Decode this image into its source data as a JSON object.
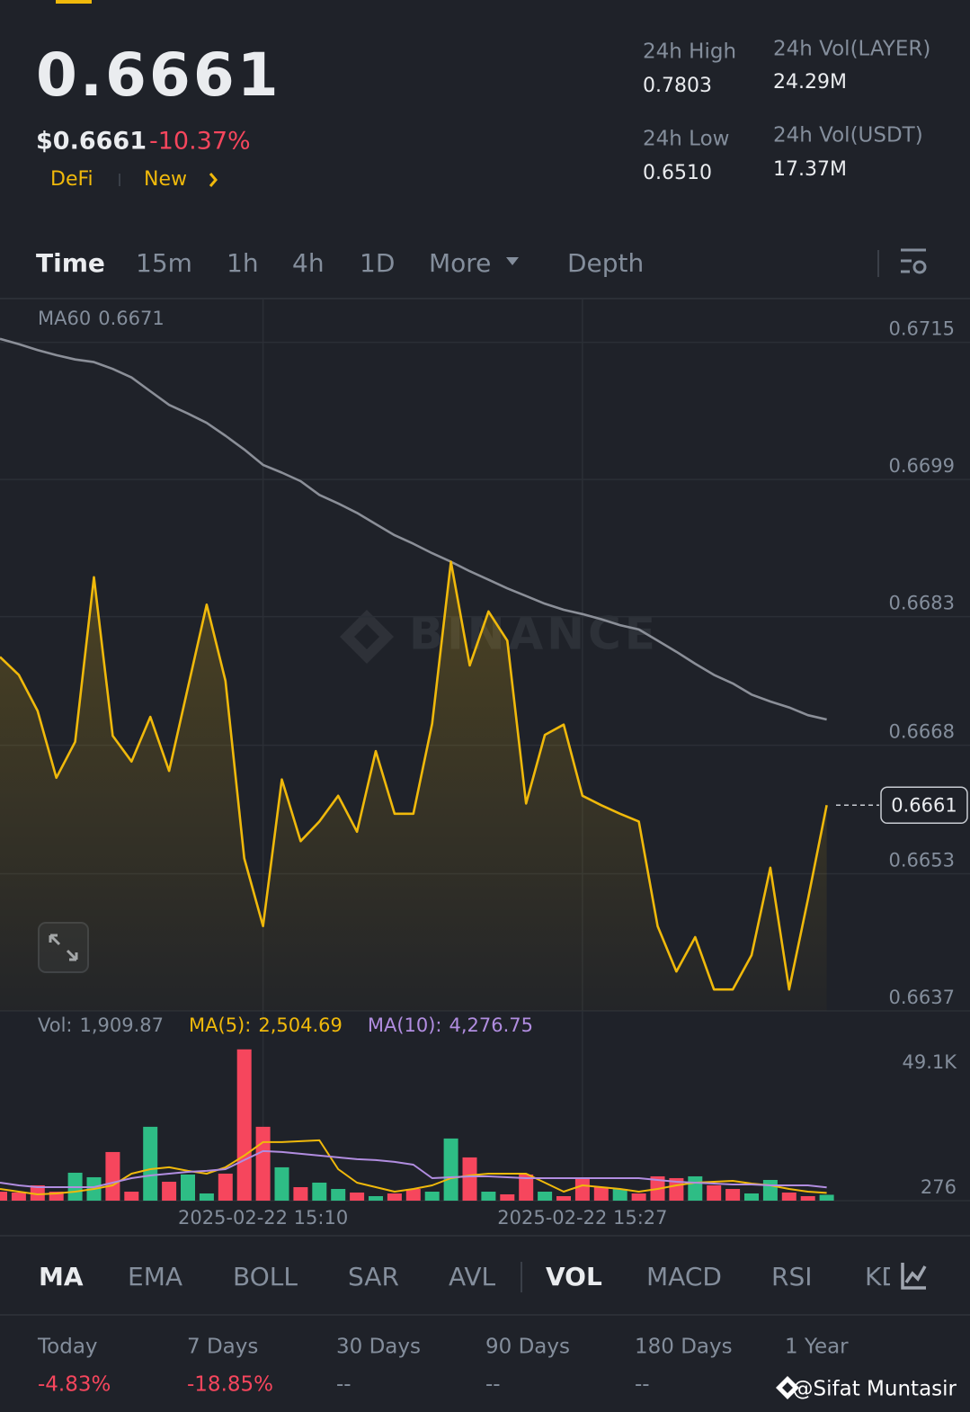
{
  "header": {
    "price": "0.6661",
    "usd_price": "$0.6661",
    "change": "-10.37%",
    "tags": [
      "DeFi",
      "New"
    ],
    "stats": [
      {
        "label": "24h High",
        "value": "0.7803"
      },
      {
        "label": "24h Vol(LAYER)",
        "value": "24.29M"
      },
      {
        "label": "24h Low",
        "value": "0.6510"
      },
      {
        "label": "24h Vol(USDT)",
        "value": "17.37M"
      }
    ]
  },
  "tabs": {
    "items": [
      "Time",
      "15m",
      "1h",
      "4h",
      "1D",
      "More",
      "Depth"
    ],
    "active": 0
  },
  "watermark": "BINANCE",
  "chart_data": [
    {
      "type": "line",
      "categories": [
        null,
        null,
        null,
        null,
        null,
        null,
        null,
        null,
        null,
        null,
        null,
        null,
        null,
        null,
        "2025-02-22 15:10",
        null,
        null,
        null,
        null,
        null,
        null,
        null,
        null,
        null,
        null,
        null,
        null,
        null,
        null,
        null,
        null,
        "2025-02-22 15:27",
        null,
        null,
        null,
        null,
        null,
        null,
        null,
        null,
        null,
        null,
        null,
        null,
        null
      ],
      "series": [
        {
          "name": "MA60",
          "last_label": "0.6671",
          "color": "#8b8f98",
          "values": [
            0.67154,
            0.67148,
            0.67141,
            0.67135,
            0.6713,
            0.67127,
            0.67119,
            0.67109,
            0.67093,
            0.67077,
            0.67067,
            0.67056,
            0.67041,
            0.67025,
            0.67007,
            0.66998,
            0.66988,
            0.66972,
            0.66962,
            0.66951,
            0.66938,
            0.66925,
            0.66915,
            0.66904,
            0.66894,
            0.66883,
            0.66873,
            0.66863,
            0.66854,
            0.66845,
            0.66838,
            0.66833,
            0.66827,
            0.6682,
            0.66815,
            0.66802,
            0.66789,
            0.66775,
            0.66762,
            0.66752,
            0.66739,
            0.66731,
            0.66724,
            0.66715,
            0.6671
          ]
        },
        {
          "last_label": "0.6661",
          "color": "#f0b90b",
          "fill": true,
          "values": [
            0.66783,
            0.66762,
            0.6672,
            0.66642,
            0.66684,
            0.66876,
            0.66691,
            0.66661,
            0.66713,
            0.6665,
            0.66747,
            0.66844,
            0.66755,
            0.66548,
            0.66469,
            0.6664,
            0.66568,
            0.66591,
            0.66621,
            0.66579,
            0.66673,
            0.666,
            0.666,
            0.66705,
            0.66894,
            0.66773,
            0.66836,
            0.66802,
            0.66612,
            0.66692,
            0.66704,
            0.66621,
            0.6661,
            0.666,
            0.66591,
            0.66469,
            0.66416,
            0.66456,
            0.66395,
            0.66395,
            0.66435,
            0.66537,
            0.66395,
            0.665,
            0.6661
          ]
        }
      ],
      "ylim": [
        0.6637,
        0.672
      ],
      "yticks": [
        0.6715,
        0.6699,
        0.6683,
        0.6668,
        0.6653,
        0.6637
      ],
      "grid": true
    },
    {
      "type": "bar",
      "value_name": "Vol:",
      "last_label": "1,909.87",
      "values": [
        2900,
        2630,
        4970,
        2920,
        9060,
        7600,
        15780,
        2920,
        23970,
        6140,
        8480,
        2340,
        8770,
        49100,
        23970,
        10820,
        4380,
        5850,
        3800,
        2630,
        1460,
        2340,
        3800,
        2920,
        20170,
        14030,
        2920,
        2050,
        8480,
        2920,
        1460,
        7310,
        4380,
        3800,
        2340,
        7890,
        7310,
        7890,
        4970,
        3800,
        2340,
        6720,
        2630,
        1460,
        1909.87
      ],
      "colors": [
        "#f6465d",
        "#f6465d",
        "#f6465d",
        "#f6465d",
        "#2ebd85",
        "#2ebd85",
        "#f6465d",
        "#f6465d",
        "#2ebd85",
        "#f6465d",
        "#2ebd85",
        "#2ebd85",
        "#f6465d",
        "#f6465d",
        "#f6465d",
        "#2ebd85",
        "#f6465d",
        "#2ebd85",
        "#2ebd85",
        "#f6465d",
        "#2ebd85",
        "#f6465d",
        "#f6465d",
        "#2ebd85",
        "#2ebd85",
        "#f6465d",
        "#2ebd85",
        "#f6465d",
        "#f6465d",
        "#2ebd85",
        "#f6465d",
        "#f6465d",
        "#f6465d",
        "#2ebd85",
        "#f6465d",
        "#f6465d",
        "#f6465d",
        "#2ebd85",
        "#f6465d",
        "#f6465d",
        "#2ebd85",
        "#2ebd85",
        "#f6465d",
        "#f6465d",
        "#2ebd85"
      ],
      "series": [
        {
          "name": "MA(5):",
          "last_label": "2,504.69",
          "color": "#f0b90b",
          "values": [
            3800,
            2920,
            2050,
            2340,
            2920,
            3800,
            4970,
            8770,
            10230,
            10820,
            9650,
            8770,
            10820,
            14620,
            19000,
            19000,
            19290,
            19580,
            10230,
            5850,
            4380,
            2920,
            3800,
            4970,
            7310,
            8180,
            8770,
            8770,
            8770,
            5850,
            2920,
            4970,
            4380,
            3800,
            2920,
            3800,
            4970,
            5850,
            6140,
            6430,
            5550,
            4970,
            3800,
            2920,
            2504.69
          ]
        },
        {
          "name": "MA(10):",
          "last_label": "4,276.75",
          "color": "#b18de0",
          "values": [
            5850,
            4970,
            4380,
            4380,
            4380,
            4380,
            5850,
            7310,
            8180,
            8770,
            9350,
            9650,
            10230,
            13150,
            16080,
            15780,
            15200,
            14620,
            14030,
            13450,
            13150,
            12570,
            11690,
            7310,
            7600,
            7890,
            7890,
            7600,
            7310,
            7310,
            7310,
            7310,
            7310,
            7310,
            7310,
            6720,
            6140,
            5850,
            5550,
            5260,
            5260,
            4970,
            4970,
            4970,
            4276.75
          ]
        }
      ],
      "ylim": [
        0,
        54000
      ],
      "yticks": [
        {
          "value": 49100,
          "label": "49.1K"
        },
        276
      ],
      "grid": false
    }
  ],
  "indicators": {
    "items": [
      "MA",
      "EMA",
      "BOLL",
      "SAR",
      "AVL",
      "VOL",
      "MACD",
      "RSI",
      "KD"
    ],
    "active": [
      0,
      5
    ]
  },
  "performance": [
    {
      "period": "Today",
      "change": "-4.83%"
    },
    {
      "period": "7 Days",
      "change": "-18.85%"
    },
    {
      "period": "30 Days",
      "change": "--"
    },
    {
      "period": "90 Days",
      "change": "--"
    },
    {
      "period": "180 Days",
      "change": "--"
    },
    {
      "period": "1 Year",
      "change": null
    }
  ],
  "credit": "@Sifat Muntasir"
}
